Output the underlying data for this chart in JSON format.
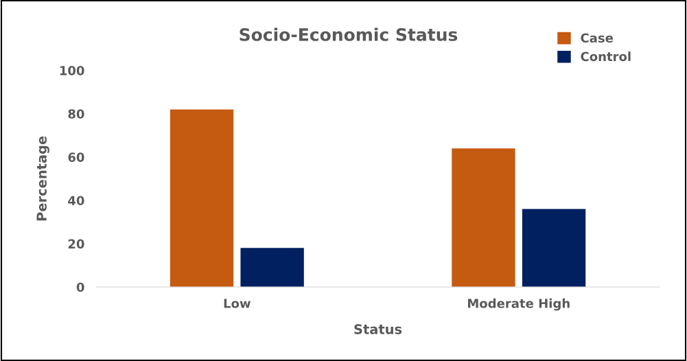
{
  "chart_data": {
    "type": "bar",
    "title": "Socio-Economic Status",
    "xlabel": "Status",
    "ylabel": "Percentage",
    "categories": [
      "Low",
      "Moderate High"
    ],
    "series": [
      {
        "name": "Case",
        "color": "#c55a11",
        "values": [
          82,
          64
        ]
      },
      {
        "name": "Control",
        "color": "#002060",
        "values": [
          18,
          36
        ]
      }
    ],
    "ylim": [
      0,
      100
    ],
    "yticks": [
      0,
      20,
      40,
      60,
      80,
      100
    ],
    "grid": false,
    "legend": "top right"
  }
}
